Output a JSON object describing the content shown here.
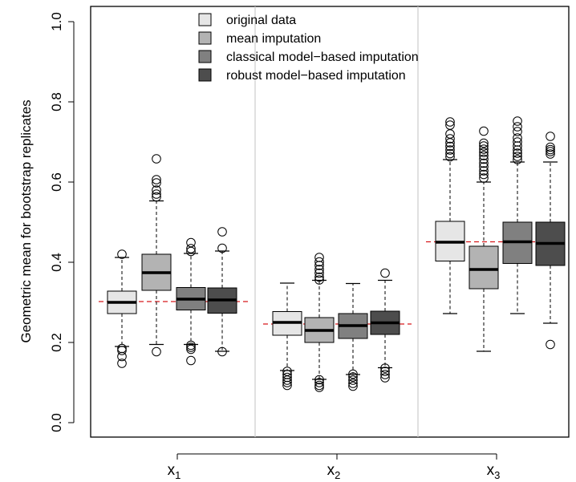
{
  "chart_data": {
    "type": "boxplot",
    "ylabel": "Geometric mean for bootstrap replicates",
    "ylim": [
      0.0,
      1.0
    ],
    "yticks": [
      0.0,
      0.2,
      0.4,
      0.6,
      0.8,
      1.0
    ],
    "ytick_labels": [
      "0.0",
      "0.2",
      "0.4",
      "0.6",
      "0.8",
      "1.0"
    ],
    "categories": [
      {
        "base": "x",
        "sub": "1"
      },
      {
        "base": "x",
        "sub": "2"
      },
      {
        "base": "x",
        "sub": "3"
      }
    ],
    "legend_position": "top",
    "series": [
      {
        "name": "original data",
        "color": "#e6e6e6"
      },
      {
        "name": "mean imputation",
        "color": "#b3b3b3"
      },
      {
        "name": "classical model−based imputation",
        "color": "#808080"
      },
      {
        "name": "robust model−based imputation",
        "color": "#4d4d4d"
      }
    ],
    "reference_lines": [
      0.302,
      0.246,
      0.451
    ],
    "reference_color": "#d7191c",
    "groups": [
      {
        "boxes": [
          {
            "wlo": 0.19,
            "q1": 0.272,
            "med": 0.3,
            "q3": 0.328,
            "whi": 0.412,
            "outliers": [
              0.42,
              0.185,
              0.18,
              0.165,
              0.148
            ]
          },
          {
            "wlo": 0.195,
            "q1": 0.33,
            "med": 0.374,
            "q3": 0.42,
            "whi": 0.553,
            "outliers": [
              0.658,
              0.606,
              0.598,
              0.58,
              0.57,
              0.563,
              0.177
            ]
          },
          {
            "wlo": 0.195,
            "q1": 0.281,
            "med": 0.308,
            "q3": 0.337,
            "whi": 0.422,
            "outliers": [
              0.449,
              0.434,
              0.427,
              0.193,
              0.188,
              0.183,
              0.155
            ]
          },
          {
            "wlo": 0.178,
            "q1": 0.273,
            "med": 0.306,
            "q3": 0.336,
            "whi": 0.428,
            "outliers": [
              0.476,
              0.435,
              0.177
            ]
          }
        ]
      },
      {
        "boxes": [
          {
            "wlo": 0.13,
            "q1": 0.218,
            "med": 0.25,
            "q3": 0.277,
            "whi": 0.348,
            "outliers": [
              0.128,
              0.12,
              0.113,
              0.106,
              0.1,
              0.093
            ]
          },
          {
            "wlo": 0.108,
            "q1": 0.2,
            "med": 0.23,
            "q3": 0.262,
            "whi": 0.355,
            "outliers": [
              0.412,
              0.401,
              0.392,
              0.382,
              0.373,
              0.363,
              0.356,
              0.107,
              0.1,
              0.093,
              0.088
            ]
          },
          {
            "wlo": 0.12,
            "q1": 0.21,
            "med": 0.242,
            "q3": 0.272,
            "whi": 0.347,
            "outliers": [
              0.121,
              0.114,
              0.106,
              0.098,
              0.091
            ]
          },
          {
            "wlo": 0.137,
            "q1": 0.22,
            "med": 0.249,
            "q3": 0.278,
            "whi": 0.355,
            "outliers": [
              0.373,
              0.136,
              0.128,
              0.12,
              0.112
            ]
          }
        ]
      },
      {
        "boxes": [
          {
            "wlo": 0.272,
            "q1": 0.403,
            "med": 0.45,
            "q3": 0.502,
            "whi": 0.656,
            "outliers": [
              0.75,
              0.742,
              0.72,
              0.708,
              0.698,
              0.689,
              0.68,
              0.671,
              0.663
            ]
          },
          {
            "wlo": 0.178,
            "q1": 0.334,
            "med": 0.382,
            "q3": 0.44,
            "whi": 0.6,
            "outliers": [
              0.727,
              0.697,
              0.69,
              0.682,
              0.674,
              0.666,
              0.657,
              0.647,
              0.638,
              0.628,
              0.619,
              0.61
            ]
          },
          {
            "wlo": 0.272,
            "q1": 0.397,
            "med": 0.451,
            "q3": 0.5,
            "whi": 0.65,
            "outliers": [
              0.752,
              0.738,
              0.726,
              0.71,
              0.7,
              0.69,
              0.68,
              0.672,
              0.664,
              0.656
            ]
          },
          {
            "wlo": 0.248,
            "q1": 0.392,
            "med": 0.447,
            "q3": 0.5,
            "whi": 0.65,
            "outliers": [
              0.714,
              0.687,
              0.681,
              0.676,
              0.67,
              0.195
            ]
          }
        ]
      }
    ]
  }
}
